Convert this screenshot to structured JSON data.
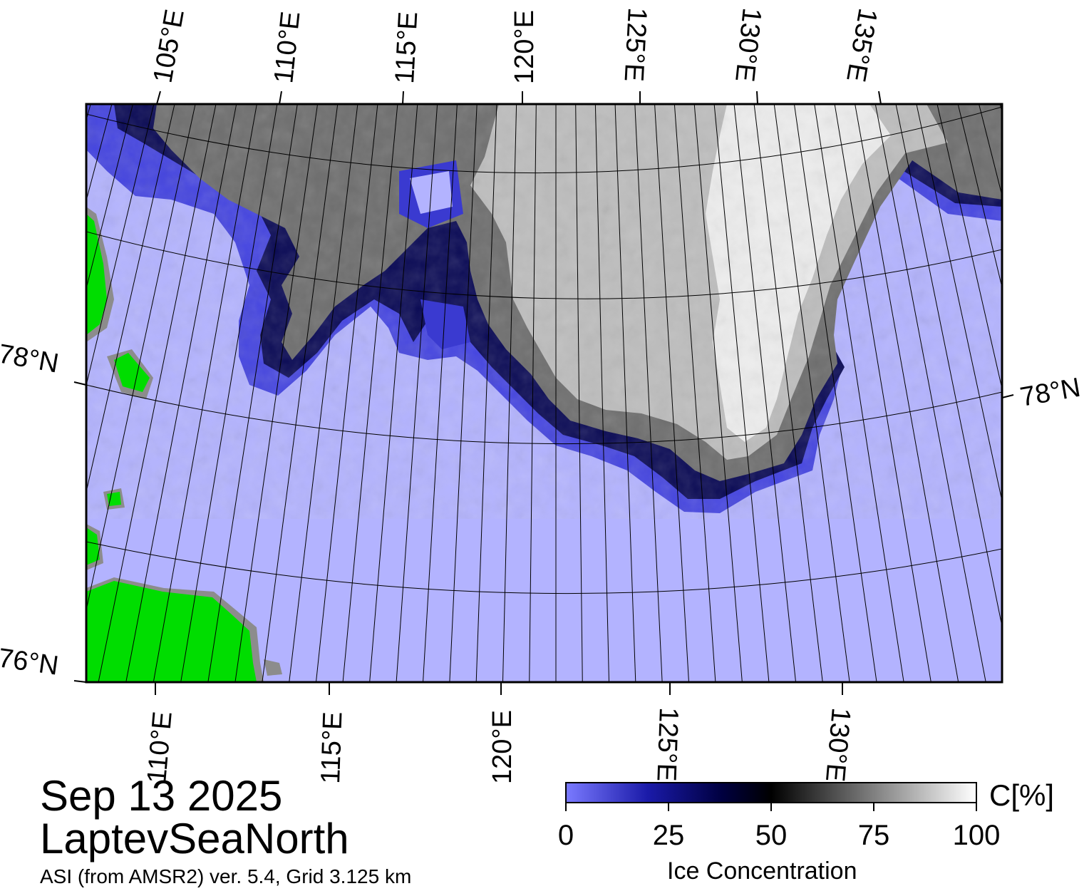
{
  "map": {
    "top_lon_labels": [
      "105°E",
      "110°E",
      "115°E",
      "120°E",
      "125°E",
      "130°E",
      "135°E"
    ],
    "bottom_lon_labels": [
      "110°E",
      "115°E",
      "120°E",
      "125°E",
      "130°E"
    ],
    "lat_labels": {
      "left_78": "78°N",
      "right_78": "78°N",
      "left_76": "76°N"
    },
    "colors": {
      "ocean_open_water": "#b3b3ff",
      "land": "#00dd00",
      "coast_mask": "#8c8c8c",
      "graticule": "#000000",
      "frame": "#000000"
    }
  },
  "caption": {
    "date": "Sep 13 2025",
    "region": "LaptevSeaNorth",
    "product": "ASI (from AMSR2) ver. 5.4,  Grid 3.125 km"
  },
  "colorbar": {
    "title": "Ice Concentration",
    "unit": "C[%]",
    "ticks": [
      "0",
      "25",
      "50",
      "75",
      "100"
    ],
    "stops": [
      "#7a7aff",
      "#1a1aa8",
      "#000040",
      "#000000",
      "#808080",
      "#ffffff"
    ]
  }
}
